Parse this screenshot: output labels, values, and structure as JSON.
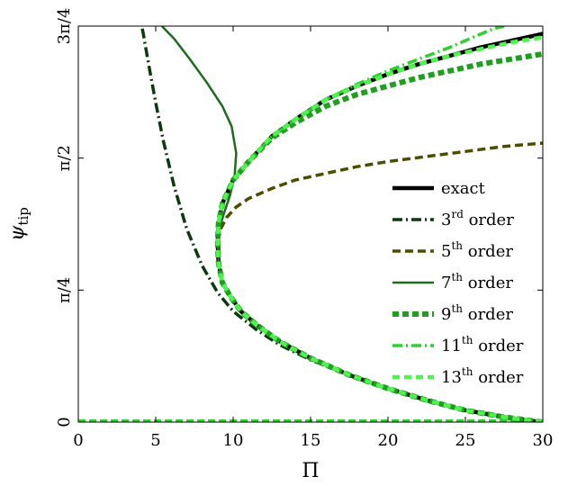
{
  "chart_data": {
    "type": "line",
    "xlabel": "Π",
    "ylabel": "ψ",
    "ylabel_sub": "tip",
    "xlim": [
      0,
      30
    ],
    "ylim": [
      0,
      2.35619
    ],
    "grid": false,
    "legend_position": "bottom-right",
    "xticks": [
      {
        "value": 0,
        "label": "0"
      },
      {
        "value": 5,
        "label": "5"
      },
      {
        "value": 10,
        "label": "10"
      },
      {
        "value": 15,
        "label": "15"
      },
      {
        "value": 20,
        "label": "20"
      },
      {
        "value": 25,
        "label": "25"
      },
      {
        "value": 30,
        "label": "30"
      }
    ],
    "yticks": [
      {
        "value": 0,
        "label": "0"
      },
      {
        "value": 0.7854,
        "label": "π/4"
      },
      {
        "value": 1.5708,
        "label": "π/2"
      },
      {
        "value": 2.35619,
        "label": "3π/4"
      }
    ],
    "series": [
      {
        "name": "exact",
        "sup": "",
        "suffix": "",
        "color": "#000000",
        "width": 4.5,
        "dash": "",
        "x": [
          29.9,
          27.5,
          25.0,
          22.5,
          20.0,
          17.5,
          15.0,
          13.0,
          11.5,
          10.5,
          9.8,
          9.3,
          9.05,
          9.0,
          9.05,
          9.3,
          10.0,
          11.0,
          12.5,
          14.0,
          16.0,
          18.0,
          20.0,
          22.0,
          24.0,
          26.0,
          28.0,
          30.0
        ],
        "y": [
          0.0,
          0.03,
          0.07,
          0.13,
          0.2,
          0.28,
          0.38,
          0.48,
          0.58,
          0.66,
          0.75,
          0.83,
          0.95,
          1.07,
          1.18,
          1.3,
          1.44,
          1.55,
          1.7,
          1.8,
          1.92,
          2.0,
          2.07,
          2.13,
          2.18,
          2.23,
          2.27,
          2.31
        ]
      },
      {
        "name": "3",
        "sup": "rd",
        "suffix": "order",
        "color": "#0d3a0d",
        "width": 3.5,
        "dash": "11,4,2,4",
        "x": [
          30.0,
          27.5,
          25.0,
          22.5,
          20.0,
          17.5,
          15.0,
          13.0,
          11.5,
          10.0,
          9.0,
          8.0,
          7.0,
          6.2,
          5.5,
          5.0,
          4.6,
          4.35,
          4.2,
          4.1
        ],
        "y": [
          0.0,
          0.03,
          0.07,
          0.13,
          0.2,
          0.28,
          0.37,
          0.46,
          0.55,
          0.66,
          0.77,
          0.93,
          1.15,
          1.4,
          1.67,
          1.9,
          2.1,
          2.23,
          2.31,
          2.356
        ]
      },
      {
        "name": "5",
        "sup": "th",
        "suffix": "order",
        "color": "#4d4d00",
        "width": 3.5,
        "dash": "9,5",
        "x": [
          9.1,
          9.05,
          9.2,
          9.6,
          10.2,
          11.0,
          12.5,
          14.0,
          16.0,
          18.0,
          20.0,
          22.5,
          25.0,
          27.5,
          30.0
        ],
        "y": [
          1.0,
          1.09,
          1.15,
          1.22,
          1.28,
          1.33,
          1.39,
          1.44,
          1.48,
          1.52,
          1.55,
          1.58,
          1.61,
          1.64,
          1.66
        ]
      },
      {
        "name": "7",
        "sup": "th",
        "suffix": "order",
        "color": "#1e6a1e",
        "width": 2.5,
        "dash": "",
        "x": [
          5.4,
          6.2,
          7.2,
          8.3,
          9.3,
          9.9,
          10.2,
          10.1,
          9.8,
          9.4,
          9.1,
          9.0,
          9.05,
          9.3
        ],
        "y": [
          2.356,
          2.28,
          2.16,
          2.02,
          1.88,
          1.76,
          1.6,
          1.47,
          1.35,
          1.24,
          1.15,
          1.07,
          0.95,
          0.83
        ]
      },
      {
        "name": "9",
        "sup": "th",
        "suffix": "order",
        "color": "#1f9e1f",
        "width": 6,
        "dash": "7,4",
        "x": [
          30.0,
          27.5,
          25.0,
          22.5,
          20.0,
          17.5,
          15.0,
          13.0,
          11.5,
          10.5,
          9.8,
          9.3,
          9.05,
          9.0,
          9.05,
          9.3,
          10.0,
          11.0,
          12.5,
          14.0,
          16.0,
          18.0,
          20.0,
          22.0,
          24.0,
          26.0,
          28.0,
          30.0
        ],
        "y": [
          0.0,
          0.03,
          0.07,
          0.13,
          0.2,
          0.28,
          0.38,
          0.48,
          0.58,
          0.66,
          0.75,
          0.83,
          0.95,
          1.07,
          1.18,
          1.3,
          1.44,
          1.55,
          1.69,
          1.78,
          1.88,
          1.95,
          2.0,
          2.05,
          2.09,
          2.13,
          2.16,
          2.19
        ]
      },
      {
        "name": "11",
        "sup": "th",
        "suffix": "order",
        "color": "#2ed02e",
        "width": 3.5,
        "dash": "11,4,2,4",
        "x": [
          11.0,
          12.5,
          14.0,
          16.0,
          18.0,
          20.0,
          22.0,
          24.0,
          25.5,
          26.8,
          27.5
        ],
        "y": [
          1.55,
          1.7,
          1.8,
          1.92,
          2.01,
          2.09,
          2.16,
          2.23,
          2.29,
          2.34,
          2.356
        ]
      },
      {
        "name": "13",
        "sup": "th",
        "suffix": "order",
        "color": "#4ef44e",
        "width": 4.5,
        "dash": "8,5",
        "x": [
          30.0,
          27.5,
          25.0,
          22.5,
          20.0,
          17.5,
          15.0,
          13.0,
          11.5,
          10.5,
          9.8,
          9.3,
          9.05,
          9.0,
          9.05,
          9.3,
          10.0,
          11.0,
          12.5,
          14.0,
          16.0,
          18.0,
          20.0,
          22.0,
          24.0,
          26.0,
          28.0,
          30.0
        ],
        "y": [
          0.0,
          0.03,
          0.07,
          0.13,
          0.2,
          0.28,
          0.38,
          0.48,
          0.58,
          0.66,
          0.75,
          0.83,
          0.95,
          1.07,
          1.18,
          1.3,
          1.44,
          1.55,
          1.7,
          1.8,
          1.92,
          2.0,
          2.07,
          2.13,
          2.18,
          2.22,
          2.26,
          2.29
        ]
      }
    ],
    "baseline": {
      "y": 0,
      "color": "#2ed02e",
      "dash": "8,4"
    }
  }
}
